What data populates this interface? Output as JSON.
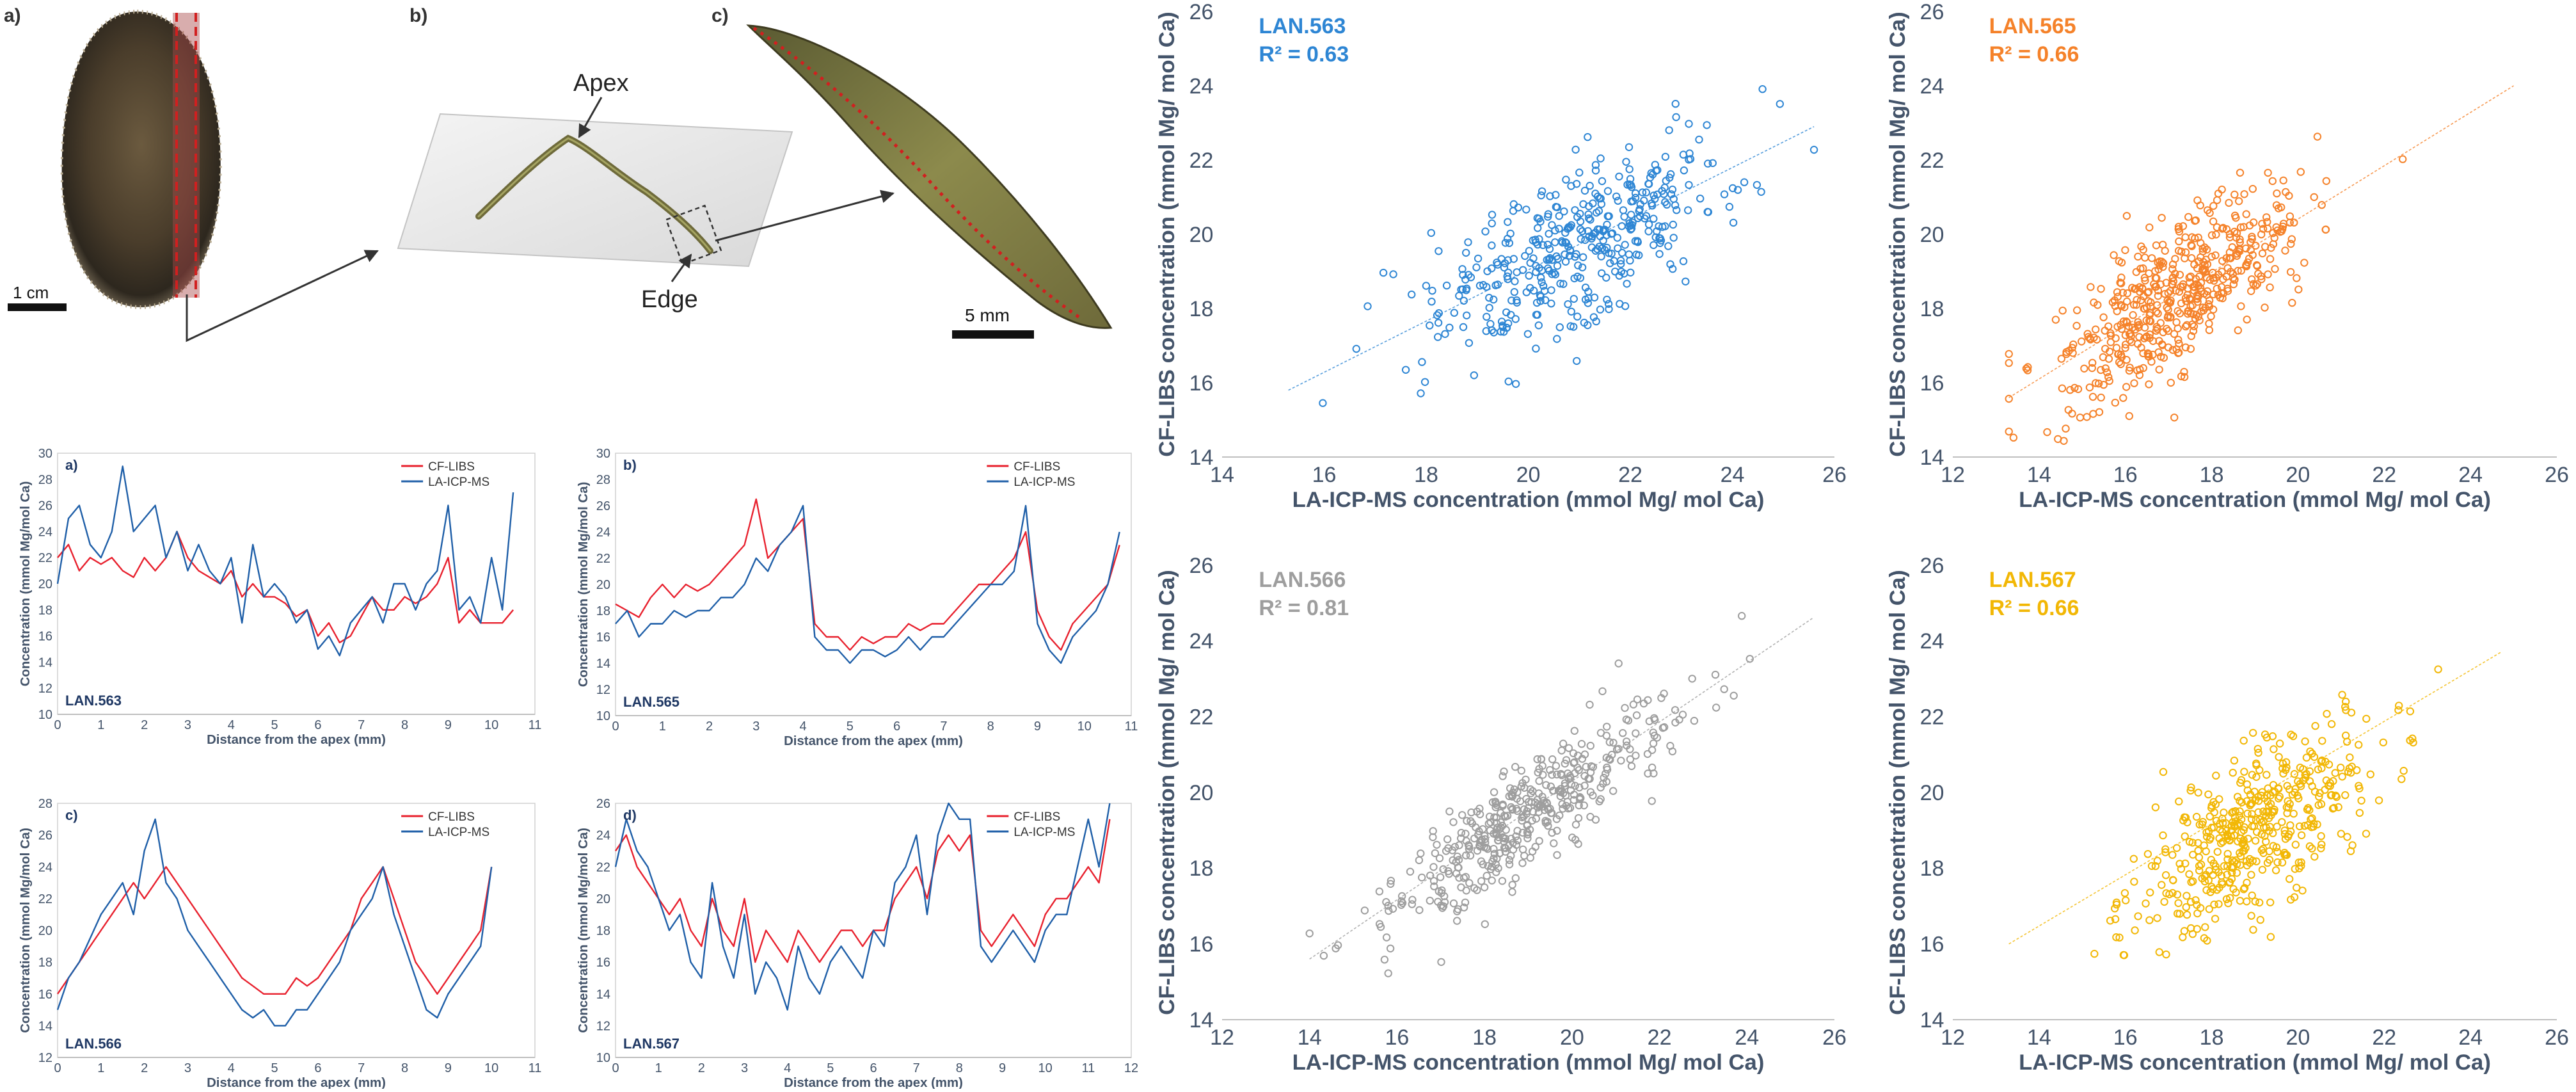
{
  "photos": {
    "a": {
      "label": "a)",
      "scale_text": "1 cm"
    },
    "b": {
      "label": "b)",
      "apex_label": "Apex",
      "edge_label": "Edge"
    },
    "c": {
      "label": "c)",
      "scale_text": "5 mm"
    }
  },
  "colors": {
    "cf_libs": "#e8212e",
    "la_icp_ms": "#1f5fa8",
    "lan563": "#2e86d4",
    "lan565": "#f5822a",
    "lan566": "#9e9e9e",
    "lan567": "#f2b705",
    "axis_text": "#44546a",
    "sample_text": "#1f3864"
  },
  "chart_data": [
    {
      "id": "profile-a",
      "type": "line",
      "panel_label": "a)",
      "sample": "LAN.563",
      "xlabel": "Distance from the apex (mm)",
      "ylabel": "Concentration (mmol Mg/mol Ca)",
      "xlim": [
        0,
        11
      ],
      "xticks": [
        0,
        1,
        2,
        3,
        4,
        5,
        6,
        7,
        8,
        9,
        10,
        11
      ],
      "ylim": [
        10,
        30
      ],
      "yticks": [
        10,
        12,
        14,
        16,
        18,
        20,
        22,
        24,
        26,
        28,
        30
      ],
      "legend": "top-right",
      "x": [
        0,
        0.25,
        0.5,
        0.75,
        1,
        1.25,
        1.5,
        1.75,
        2,
        2.25,
        2.5,
        2.75,
        3,
        3.25,
        3.5,
        3.75,
        4,
        4.25,
        4.5,
        4.75,
        5,
        5.25,
        5.5,
        5.75,
        6,
        6.25,
        6.5,
        6.75,
        7,
        7.25,
        7.5,
        7.75,
        8,
        8.25,
        8.5,
        8.75,
        9,
        9.25,
        9.5,
        9.75,
        10,
        10.25,
        10.5
      ],
      "series": [
        {
          "name": "CF-LIBS",
          "values": [
            22,
            23,
            21,
            22,
            21.5,
            22,
            21,
            20.5,
            22,
            21,
            22,
            24,
            22,
            21,
            20.5,
            20,
            21,
            19,
            20,
            19,
            19,
            18.5,
            17.5,
            18,
            16,
            17,
            15.5,
            16,
            17.5,
            19,
            18,
            18,
            19,
            18.5,
            19,
            20,
            22,
            17,
            18,
            17,
            17,
            17,
            18
          ]
        },
        {
          "name": "LA-ICP-MS",
          "values": [
            20,
            25,
            26,
            23,
            22,
            24,
            29,
            24,
            25,
            26,
            22,
            24,
            21,
            23,
            21,
            20,
            22,
            17,
            23,
            19,
            20,
            19,
            17,
            18,
            15,
            16,
            14.5,
            17,
            18,
            19,
            17,
            20,
            20,
            18,
            20,
            21,
            26,
            18,
            19,
            17,
            22,
            18,
            27
          ]
        }
      ]
    },
    {
      "id": "profile-b",
      "type": "line",
      "panel_label": "b)",
      "sample": "LAN.565",
      "xlabel": "Distance from the apex (mm)",
      "ylabel": "Concentration (mmol Mg/mol Ca)",
      "xlim": [
        0,
        11
      ],
      "xticks": [
        0,
        1,
        2,
        3,
        4,
        5,
        6,
        7,
        8,
        9,
        10,
        11
      ],
      "ylim": [
        10,
        30
      ],
      "yticks": [
        10,
        12,
        14,
        16,
        18,
        20,
        22,
        24,
        26,
        28,
        30
      ],
      "legend": "top-right",
      "x": [
        0,
        0.25,
        0.5,
        0.75,
        1,
        1.25,
        1.5,
        1.75,
        2,
        2.25,
        2.5,
        2.75,
        3,
        3.25,
        3.5,
        3.75,
        4,
        4.25,
        4.5,
        4.75,
        5,
        5.25,
        5.5,
        5.75,
        6,
        6.25,
        6.5,
        6.75,
        7,
        7.25,
        7.5,
        7.75,
        8,
        8.25,
        8.5,
        8.75,
        9,
        9.25,
        9.5,
        9.75,
        10,
        10.25,
        10.5,
        10.75
      ],
      "series": [
        {
          "name": "CF-LIBS",
          "values": [
            18.5,
            18,
            17.5,
            19,
            20,
            19,
            20,
            19.5,
            20,
            21,
            22,
            23,
            26.5,
            22,
            23,
            24,
            25,
            17,
            16,
            16,
            15,
            16,
            15.5,
            16,
            16,
            17,
            16.5,
            17,
            17,
            18,
            19,
            20,
            20,
            21,
            22,
            24,
            18,
            16,
            15,
            17,
            18,
            19,
            20,
            23
          ]
        },
        {
          "name": "LA-ICP-MS",
          "values": [
            17,
            18,
            16,
            17,
            17,
            18,
            17.5,
            18,
            18,
            19,
            19,
            20,
            22,
            21,
            23,
            24,
            26,
            16,
            15,
            15,
            14,
            15,
            15,
            14.5,
            15,
            16,
            15,
            16,
            16,
            17,
            18,
            19,
            20,
            20,
            21,
            26,
            17,
            15,
            14,
            16,
            17,
            18,
            20,
            24
          ]
        }
      ]
    },
    {
      "id": "profile-c",
      "type": "line",
      "panel_label": "c)",
      "sample": "LAN.566",
      "xlabel": "Distance from the apex (mm)",
      "ylabel": "Concentration (mmol Mg/mol Ca)",
      "xlim": [
        0,
        11
      ],
      "xticks": [
        0,
        1,
        2,
        3,
        4,
        5,
        6,
        7,
        8,
        9,
        10,
        11
      ],
      "ylim": [
        12,
        28
      ],
      "yticks": [
        12,
        14,
        16,
        18,
        20,
        22,
        24,
        26,
        28
      ],
      "legend": "top-right",
      "x": [
        0,
        0.25,
        0.5,
        0.75,
        1,
        1.25,
        1.5,
        1.75,
        2,
        2.25,
        2.5,
        2.75,
        3,
        3.25,
        3.5,
        3.75,
        4,
        4.25,
        4.5,
        4.75,
        5,
        5.25,
        5.5,
        5.75,
        6,
        6.25,
        6.5,
        6.75,
        7,
        7.25,
        7.5,
        7.75,
        8,
        8.25,
        8.5,
        8.75,
        9,
        9.25,
        9.5,
        9.75,
        10
      ],
      "series": [
        {
          "name": "CF-LIBS",
          "values": [
            16,
            17,
            18,
            19,
            20,
            21,
            22,
            23,
            22,
            23,
            24,
            23,
            22,
            21,
            20,
            19,
            18,
            17,
            16.5,
            16,
            16,
            16,
            17,
            16.5,
            17,
            18,
            19,
            20,
            22,
            23,
            24,
            22,
            20,
            18,
            17,
            16,
            17,
            18,
            19,
            20,
            24
          ]
        },
        {
          "name": "LA-ICP-MS",
          "values": [
            15,
            17,
            18,
            19.5,
            21,
            22,
            23,
            21,
            25,
            27,
            23,
            22,
            20,
            19,
            18,
            17,
            16,
            15,
            14.5,
            15,
            14,
            14,
            15,
            15,
            16,
            17,
            18,
            20,
            21,
            22,
            24,
            21,
            19,
            17,
            15,
            14.5,
            16,
            17,
            18,
            19,
            24
          ]
        }
      ]
    },
    {
      "id": "profile-d",
      "type": "line",
      "panel_label": "d)",
      "sample": "LAN.567",
      "xlabel": "Distance from the apex (mm)",
      "ylabel": "Concentration (mmol Mg/mol Ca)",
      "xlim": [
        0,
        12
      ],
      "xticks": [
        0,
        1,
        2,
        3,
        4,
        5,
        6,
        7,
        8,
        9,
        10,
        11,
        12
      ],
      "ylim": [
        10,
        26
      ],
      "yticks": [
        10,
        12,
        14,
        16,
        18,
        20,
        22,
        24,
        26
      ],
      "legend": "top-right",
      "x": [
        0,
        0.25,
        0.5,
        0.75,
        1,
        1.25,
        1.5,
        1.75,
        2,
        2.25,
        2.5,
        2.75,
        3,
        3.25,
        3.5,
        3.75,
        4,
        4.25,
        4.5,
        4.75,
        5,
        5.25,
        5.5,
        5.75,
        6,
        6.25,
        6.5,
        6.75,
        7,
        7.25,
        7.5,
        7.75,
        8,
        8.25,
        8.5,
        8.75,
        9,
        9.25,
        9.5,
        9.75,
        10,
        10.25,
        10.5,
        10.75,
        11,
        11.25,
        11.5
      ],
      "series": [
        {
          "name": "CF-LIBS",
          "values": [
            23,
            24,
            22,
            21,
            20,
            19,
            20,
            18,
            17,
            20,
            18,
            17,
            20,
            16,
            18,
            17,
            16,
            18,
            17,
            16,
            17,
            18,
            18,
            17,
            18,
            18,
            20,
            21,
            22,
            20,
            23,
            24,
            23,
            24,
            18,
            17,
            18,
            19,
            18,
            17,
            19,
            20,
            20,
            21,
            22,
            21,
            25
          ]
        },
        {
          "name": "LA-ICP-MS",
          "values": [
            22,
            25,
            23,
            22,
            20,
            18,
            19,
            16,
            15,
            21,
            17,
            15,
            19,
            14,
            16,
            15,
            13,
            17,
            15,
            14,
            16,
            17,
            16,
            15,
            18,
            17,
            21,
            22,
            24,
            19,
            24,
            26,
            25,
            25,
            17,
            16,
            17,
            18,
            17,
            16,
            18,
            19,
            19,
            22,
            25,
            22,
            26
          ]
        }
      ]
    },
    {
      "id": "scatter-563",
      "type": "scatter",
      "sample": "LAN.563",
      "annotation": "R² = 0.63",
      "xlabel": "LA-ICP-MS concentration (mmol Mg/ mol Ca)",
      "ylabel": "CF-LIBS concentration (mmol Mg/ mol Ca)",
      "xlim": [
        14,
        26
      ],
      "xticks": [
        14,
        16,
        18,
        20,
        22,
        24,
        26
      ],
      "ylim": [
        14,
        26
      ],
      "yticks": [
        14,
        16,
        18,
        20,
        22,
        24,
        26
      ],
      "trend": {
        "x": [
          15.3,
          25.6
        ],
        "y": [
          15.8,
          22.9
        ]
      },
      "cloud": {
        "n": 420,
        "x_center": 21.0,
        "x_spread": 2.6,
        "x_range": [
          15.3,
          25.6
        ],
        "slope": 0.69,
        "intercept": 5.2,
        "noise": 1.1,
        "y_range": [
          15.2,
          25.4
        ],
        "seed": 563
      }
    },
    {
      "id": "scatter-565",
      "type": "scatter",
      "sample": "LAN.565",
      "annotation": "R² = 0.66",
      "xlabel": "LA-ICP-MS concentration (mmol Mg/ mol Ca)",
      "ylabel": "CF-LIBS concentration (mmol Mg/ mol Ca)",
      "xlim": [
        12,
        26
      ],
      "xticks": [
        12,
        14,
        16,
        18,
        20,
        22,
        24,
        26
      ],
      "ylim": [
        14,
        26
      ],
      "yticks": [
        14,
        16,
        18,
        20,
        22,
        24,
        26
      ],
      "trend": {
        "x": [
          13.3,
          25.0
        ],
        "y": [
          15.6,
          24.0
        ]
      },
      "cloud": {
        "n": 520,
        "x_center": 17.2,
        "x_spread": 2.6,
        "x_range": [
          13.3,
          24.8
        ],
        "slope": 0.72,
        "intercept": 6.0,
        "noise": 1.0,
        "y_range": [
          14.2,
          24.6
        ],
        "seed": 565
      }
    },
    {
      "id": "scatter-566",
      "type": "scatter",
      "sample": "LAN.566",
      "annotation": "R² = 0.81",
      "xlabel": "LA-ICP-MS concentration (mmol Mg/ mol Ca)",
      "ylabel": "CF-LIBS concentration (mmol Mg/ mol Ca)",
      "xlim": [
        12,
        26
      ],
      "xticks": [
        12,
        14,
        16,
        18,
        20,
        22,
        24,
        26
      ],
      "ylim": [
        14,
        26
      ],
      "yticks": [
        14,
        16,
        18,
        20,
        22,
        24,
        26
      ],
      "trend": {
        "x": [
          14.0,
          25.5
        ],
        "y": [
          15.6,
          24.6
        ]
      },
      "cloud": {
        "n": 430,
        "x_center": 19.0,
        "x_spread": 3.0,
        "x_range": [
          14.0,
          25.5
        ],
        "slope": 0.78,
        "intercept": 4.6,
        "noise": 0.7,
        "y_range": [
          15.0,
          25.7
        ],
        "seed": 566
      }
    },
    {
      "id": "scatter-567",
      "type": "scatter",
      "sample": "LAN.567",
      "annotation": "R² = 0.66",
      "xlabel": "LA-ICP-MS concentration (mmol Mg/ mol Ca)",
      "ylabel": "CF-LIBS concentration (mmol Mg/ mol Ca)",
      "xlim": [
        12,
        26
      ],
      "xticks": [
        12,
        14,
        16,
        18,
        20,
        22,
        24,
        26
      ],
      "ylim": [
        14,
        26
      ],
      "yticks": [
        14,
        16,
        18,
        20,
        22,
        24,
        26
      ],
      "trend": {
        "x": [
          13.3,
          24.7
        ],
        "y": [
          16.0,
          23.7
        ]
      },
      "cloud": {
        "n": 470,
        "x_center": 19.0,
        "x_spread": 2.4,
        "x_range": [
          13.3,
          24.7
        ],
        "slope": 0.68,
        "intercept": 6.1,
        "noise": 1.0,
        "y_range": [
          14.8,
          25.7
        ],
        "seed": 567
      }
    }
  ]
}
